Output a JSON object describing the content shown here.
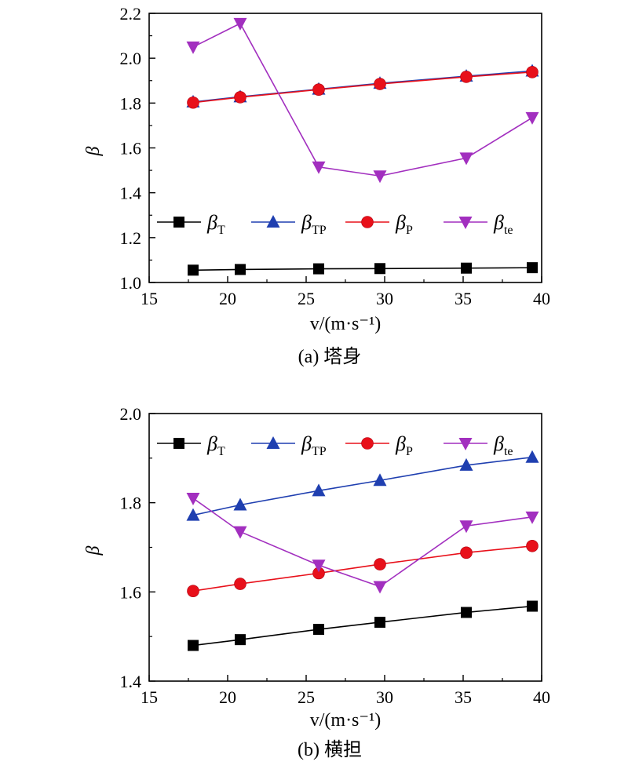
{
  "chart_data": [
    {
      "type": "line",
      "caption": "(a) 塔身",
      "xlabel": "v/(m·s⁻¹)",
      "ylabel": "β",
      "xlim": [
        15,
        40
      ],
      "ylim": [
        1.0,
        2.2
      ],
      "xticks": [
        "15",
        "20",
        "25",
        "30",
        "35",
        "40"
      ],
      "yticks": [
        "1.0",
        "1.2",
        "1.4",
        "1.6",
        "1.8",
        "2.0",
        "2.2"
      ],
      "legend_position": "middle",
      "x": [
        17.8,
        20.8,
        25.8,
        29.7,
        35.2,
        39.4
      ],
      "series": [
        {
          "name": "β_T",
          "symbol": "β",
          "sub": "T",
          "marker": "square",
          "color": "#000000",
          "values": [
            1.055,
            1.058,
            1.061,
            1.062,
            1.064,
            1.066
          ]
        },
        {
          "name": "β_TP",
          "symbol": "β",
          "sub": "TP",
          "marker": "triangle-up",
          "color": "#1f3fb0",
          "values": [
            1.805,
            1.828,
            1.862,
            1.888,
            1.92,
            1.943
          ]
        },
        {
          "name": "β_P",
          "symbol": "β",
          "sub": "P",
          "marker": "circle",
          "color": "#e8101a",
          "values": [
            1.802,
            1.826,
            1.86,
            1.885,
            1.917,
            1.938
          ]
        },
        {
          "name": "β_te",
          "symbol": "β",
          "sub": "te",
          "marker": "triangle-down",
          "color": "#a22fbf",
          "values": [
            2.05,
            2.155,
            1.515,
            1.475,
            1.555,
            1.735
          ]
        }
      ]
    },
    {
      "type": "line",
      "caption": "(b) 横担",
      "xlabel": "v/(m·s⁻¹)",
      "ylabel": "β",
      "xlim": [
        15,
        40
      ],
      "ylim": [
        1.4,
        2.0
      ],
      "xticks": [
        "15",
        "20",
        "25",
        "30",
        "35",
        "40"
      ],
      "yticks": [
        "1.4",
        "1.6",
        "1.8",
        "2.0"
      ],
      "legend_position": "top",
      "x": [
        17.8,
        20.8,
        25.8,
        29.7,
        35.2,
        39.4
      ],
      "series": [
        {
          "name": "β_T",
          "symbol": "β",
          "sub": "T",
          "marker": "square",
          "color": "#000000",
          "values": [
            1.48,
            1.493,
            1.516,
            1.532,
            1.554,
            1.568
          ]
        },
        {
          "name": "β_TP",
          "symbol": "β",
          "sub": "TP",
          "marker": "triangle-up",
          "color": "#1f3fb0",
          "values": [
            1.772,
            1.795,
            1.827,
            1.85,
            1.884,
            1.902
          ]
        },
        {
          "name": "β_P",
          "symbol": "β",
          "sub": "P",
          "marker": "circle",
          "color": "#e8101a",
          "values": [
            1.602,
            1.618,
            1.642,
            1.662,
            1.688,
            1.703
          ]
        },
        {
          "name": "β_te",
          "symbol": "β",
          "sub": "te",
          "marker": "triangle-down",
          "color": "#a22fbf",
          "values": [
            1.81,
            1.735,
            1.66,
            1.612,
            1.748,
            1.768
          ]
        }
      ]
    }
  ]
}
